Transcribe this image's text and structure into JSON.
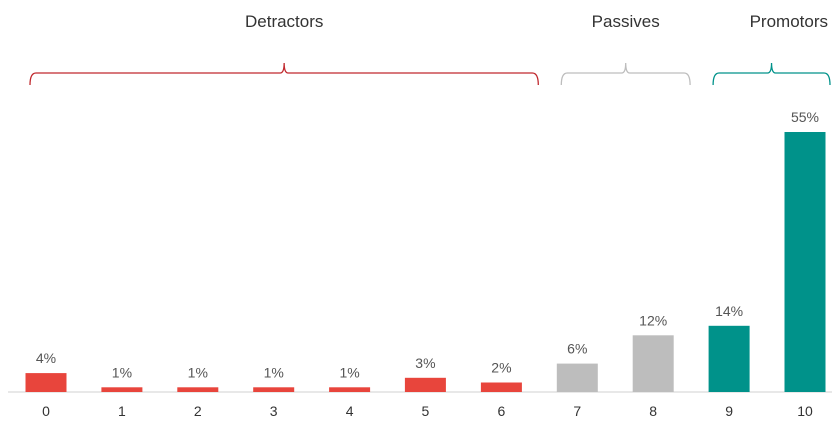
{
  "chart_data": {
    "type": "bar",
    "categories": [
      "0",
      "1",
      "2",
      "3",
      "4",
      "5",
      "6",
      "7",
      "8",
      "9",
      "10"
    ],
    "values": [
      4,
      1,
      1,
      1,
      1,
      3,
      2,
      6,
      12,
      14,
      55
    ],
    "data_labels": [
      "4%",
      "1%",
      "1%",
      "1%",
      "1%",
      "3%",
      "2%",
      "6%",
      "12%",
      "14%",
      "55%"
    ],
    "groups": [
      {
        "name": "Detractors",
        "from": 0,
        "to": 6,
        "color": "#e8453c",
        "brace_color": "#c0282d"
      },
      {
        "name": "Passives",
        "from": 7,
        "to": 8,
        "color": "#bdbdbd",
        "brace_color": "#bdbdbd"
      },
      {
        "name": "Promotors",
        "from": 9,
        "to": 10,
        "color": "#00928a",
        "brace_color": "#00928a"
      }
    ],
    "ylim": [
      0,
      55
    ],
    "grid": false,
    "title": "",
    "xlabel": "",
    "ylabel": ""
  }
}
